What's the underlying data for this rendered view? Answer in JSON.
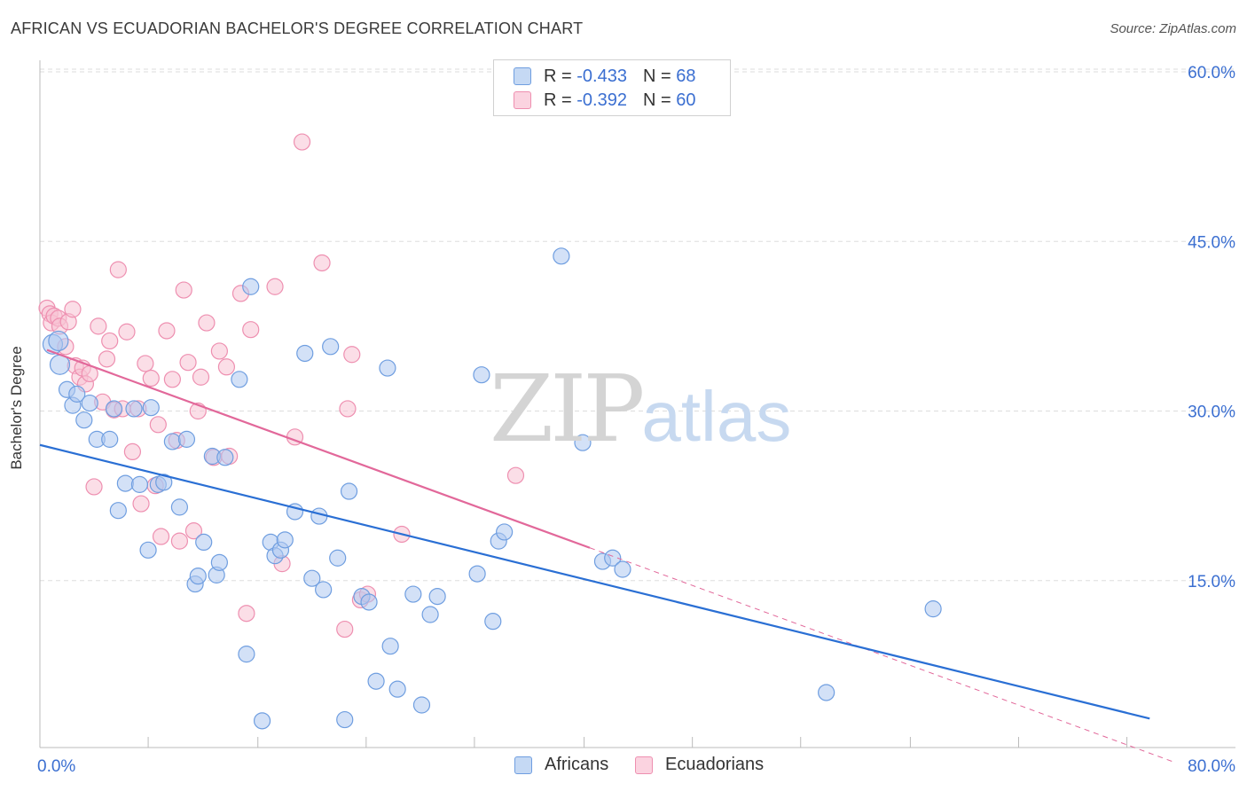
{
  "title": "AFRICAN VS ECUADORIAN BACHELOR'S DEGREE CORRELATION CHART",
  "source": "Source: ZipAtlas.com",
  "colors": {
    "blue_fill": "#aec8f0",
    "blue_stroke": "#6f9ee0",
    "blue_line": "#2a6fd4",
    "pink_fill": "#f8c3d4",
    "pink_stroke": "#ee8fb0",
    "pink_line": "#e2689a",
    "tick_text": "#3b6fd1",
    "grid": "#dddddd"
  },
  "legend_top": {
    "africans": {
      "r_label": "R =",
      "r_value": "-0.433",
      "n_label": "N =",
      "n_value": "68"
    },
    "ecuadorians": {
      "r_label": "R =",
      "r_value": "-0.392",
      "n_label": "N =",
      "n_value": "60"
    }
  },
  "legend_bottom": {
    "africans": "Africans",
    "ecuadorians": "Ecuadorians"
  },
  "watermark": {
    "zip": "ZIP",
    "atlas": "atlas"
  },
  "chart_data": {
    "type": "scatter",
    "title": "AFRICAN VS ECUADORIAN BACHELOR'S DEGREE CORRELATION CHART",
    "xlabel": "",
    "ylabel": "Bachelor's Degree",
    "xlim": [
      0,
      80
    ],
    "ylim": [
      0,
      63
    ],
    "x_tick_labels": [
      {
        "x": 0,
        "label": "0.0%"
      },
      {
        "x": 80,
        "label": "80.0%"
      }
    ],
    "y_ticks": [
      {
        "y": 15,
        "label": "15.0%"
      },
      {
        "y": 30,
        "label": "30.0%"
      },
      {
        "y": 45,
        "label": "45.0%"
      },
      {
        "y": 60,
        "label": "60.0%"
      }
    ],
    "x_minor_ticks": [
      0,
      7.6,
      15.3,
      22.9,
      30.5,
      38.2,
      45.8,
      53.4,
      61.1,
      68.7,
      76.3
    ],
    "series": [
      {
        "name": "Africans",
        "r": -0.433,
        "n": 68,
        "trend": {
          "x": [
            0,
            77.9
          ],
          "y": [
            27.0,
            2.8
          ]
        },
        "points": [
          [
            0.9,
            35.9
          ],
          [
            1.3,
            36.2
          ],
          [
            1.4,
            34.1
          ],
          [
            1.9,
            31.9
          ],
          [
            2.3,
            30.5
          ],
          [
            2.6,
            31.5
          ],
          [
            3.1,
            29.2
          ],
          [
            3.5,
            30.7
          ],
          [
            4.0,
            27.5
          ],
          [
            4.9,
            27.5
          ],
          [
            5.2,
            30.2
          ],
          [
            5.5,
            21.2
          ],
          [
            6.0,
            23.6
          ],
          [
            6.6,
            30.2
          ],
          [
            7.0,
            23.5
          ],
          [
            7.6,
            17.7
          ],
          [
            7.8,
            30.3
          ],
          [
            8.3,
            23.5
          ],
          [
            8.7,
            23.7
          ],
          [
            9.3,
            27.3
          ],
          [
            9.8,
            21.5
          ],
          [
            10.3,
            27.5
          ],
          [
            10.9,
            14.7
          ],
          [
            11.1,
            15.4
          ],
          [
            11.5,
            18.4
          ],
          [
            12.1,
            26.0
          ],
          [
            12.4,
            15.5
          ],
          [
            12.6,
            16.6
          ],
          [
            13.0,
            25.9
          ],
          [
            14.0,
            32.8
          ],
          [
            14.5,
            8.5
          ],
          [
            14.8,
            41.0
          ],
          [
            15.6,
            2.6
          ],
          [
            16.2,
            18.4
          ],
          [
            16.5,
            17.2
          ],
          [
            16.9,
            17.7
          ],
          [
            17.2,
            18.6
          ],
          [
            17.9,
            21.1
          ],
          [
            18.6,
            35.1
          ],
          [
            19.1,
            15.2
          ],
          [
            19.6,
            20.7
          ],
          [
            19.9,
            14.2
          ],
          [
            20.4,
            35.7
          ],
          [
            20.9,
            17.0
          ],
          [
            21.4,
            2.7
          ],
          [
            21.7,
            22.9
          ],
          [
            22.6,
            13.6
          ],
          [
            23.1,
            13.1
          ],
          [
            23.6,
            6.1
          ],
          [
            24.4,
            33.8
          ],
          [
            24.6,
            9.2
          ],
          [
            25.1,
            5.4
          ],
          [
            26.2,
            13.8
          ],
          [
            26.8,
            4.0
          ],
          [
            27.4,
            12.0
          ],
          [
            27.9,
            13.6
          ],
          [
            30.7,
            15.6
          ],
          [
            31.0,
            33.2
          ],
          [
            31.8,
            11.4
          ],
          [
            32.2,
            18.5
          ],
          [
            32.6,
            19.3
          ],
          [
            36.6,
            43.7
          ],
          [
            38.1,
            27.2
          ],
          [
            39.5,
            16.7
          ],
          [
            40.2,
            17.0
          ],
          [
            40.9,
            16.0
          ],
          [
            55.2,
            5.1
          ],
          [
            62.7,
            12.5
          ]
        ]
      },
      {
        "name": "Ecuadorians",
        "r": -0.392,
        "n": 60,
        "trend": {
          "x": [
            0.5,
            38.6
          ],
          "y": [
            35.4,
            17.9
          ]
        },
        "trend_ext": {
          "x": [
            38.6,
            79.5
          ],
          "y": [
            17.9,
            -1.0
          ]
        },
        "points": [
          [
            0.5,
            39.1
          ],
          [
            0.7,
            38.6
          ],
          [
            0.8,
            37.8
          ],
          [
            1.0,
            38.4
          ],
          [
            1.3,
            38.2
          ],
          [
            1.4,
            37.5
          ],
          [
            1.8,
            35.7
          ],
          [
            2.0,
            37.9
          ],
          [
            2.3,
            39.0
          ],
          [
            2.5,
            34.0
          ],
          [
            2.8,
            33.0
          ],
          [
            3.0,
            33.8
          ],
          [
            3.2,
            32.4
          ],
          [
            3.5,
            33.3
          ],
          [
            3.8,
            23.3
          ],
          [
            4.1,
            37.5
          ],
          [
            4.4,
            30.8
          ],
          [
            4.7,
            34.6
          ],
          [
            4.9,
            36.2
          ],
          [
            5.2,
            30.1
          ],
          [
            5.5,
            42.5
          ],
          [
            5.8,
            30.2
          ],
          [
            6.1,
            37.0
          ],
          [
            6.5,
            26.4
          ],
          [
            6.9,
            30.2
          ],
          [
            7.1,
            21.8
          ],
          [
            7.4,
            34.2
          ],
          [
            7.8,
            32.9
          ],
          [
            8.1,
            23.4
          ],
          [
            8.3,
            28.8
          ],
          [
            8.5,
            18.9
          ],
          [
            8.9,
            37.1
          ],
          [
            9.3,
            32.8
          ],
          [
            9.6,
            27.4
          ],
          [
            9.8,
            18.5
          ],
          [
            10.1,
            40.7
          ],
          [
            10.4,
            34.3
          ],
          [
            10.8,
            19.4
          ],
          [
            11.1,
            30.0
          ],
          [
            11.3,
            33.0
          ],
          [
            11.7,
            37.8
          ],
          [
            12.2,
            25.9
          ],
          [
            12.6,
            35.3
          ],
          [
            13.1,
            33.9
          ],
          [
            13.3,
            26.0
          ],
          [
            14.1,
            40.4
          ],
          [
            14.5,
            12.1
          ],
          [
            14.8,
            37.2
          ],
          [
            16.5,
            41.0
          ],
          [
            17.0,
            16.5
          ],
          [
            17.9,
            27.7
          ],
          [
            18.4,
            53.8
          ],
          [
            19.8,
            43.1
          ],
          [
            21.4,
            10.7
          ],
          [
            21.6,
            30.2
          ],
          [
            21.9,
            35.0
          ],
          [
            22.5,
            13.3
          ],
          [
            23.0,
            13.8
          ],
          [
            25.4,
            19.1
          ],
          [
            33.4,
            24.3
          ]
        ]
      }
    ]
  }
}
